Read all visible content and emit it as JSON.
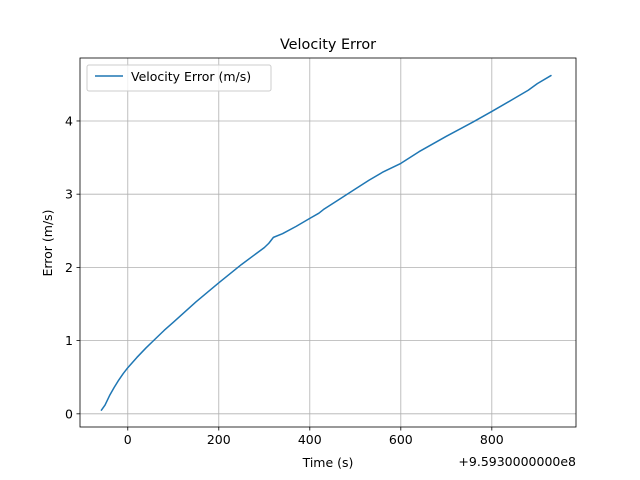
{
  "chart_data": {
    "type": "line",
    "title": "Velocity Error",
    "xlabel": "Time (s)",
    "ylabel": "Error (m/s)",
    "x_offset_text": "+9.5930000000e8",
    "xlim": [
      -105,
      985
    ],
    "ylim": [
      -0.18,
      4.86
    ],
    "x_ticks": [
      0,
      200,
      400,
      600,
      800
    ],
    "x_tick_labels": [
      "0",
      "200",
      "400",
      "600",
      "800"
    ],
    "y_ticks": [
      0,
      1,
      2,
      3,
      4
    ],
    "y_tick_labels": [
      "0",
      "1",
      "2",
      "3",
      "4"
    ],
    "grid": true,
    "legend_position": "top-left",
    "series": [
      {
        "name": "Velocity Error (m/s)",
        "color": "#1f77b4",
        "x": [
          -58,
          -50,
          -40,
          -30,
          -20,
          -10,
          0,
          20,
          40,
          60,
          80,
          100,
          150,
          200,
          250,
          300,
          310,
          320,
          340,
          370,
          400,
          420,
          430,
          460,
          500,
          530,
          560,
          600,
          640,
          700,
          760,
          800,
          850,
          880,
          900,
          930
        ],
        "y": [
          0.05,
          0.12,
          0.25,
          0.36,
          0.46,
          0.55,
          0.63,
          0.77,
          0.9,
          1.02,
          1.14,
          1.25,
          1.53,
          1.79,
          2.04,
          2.27,
          2.33,
          2.41,
          2.46,
          2.56,
          2.67,
          2.74,
          2.79,
          2.91,
          3.07,
          3.19,
          3.3,
          3.42,
          3.58,
          3.79,
          3.99,
          4.13,
          4.31,
          4.42,
          4.51,
          4.62
        ]
      }
    ]
  }
}
